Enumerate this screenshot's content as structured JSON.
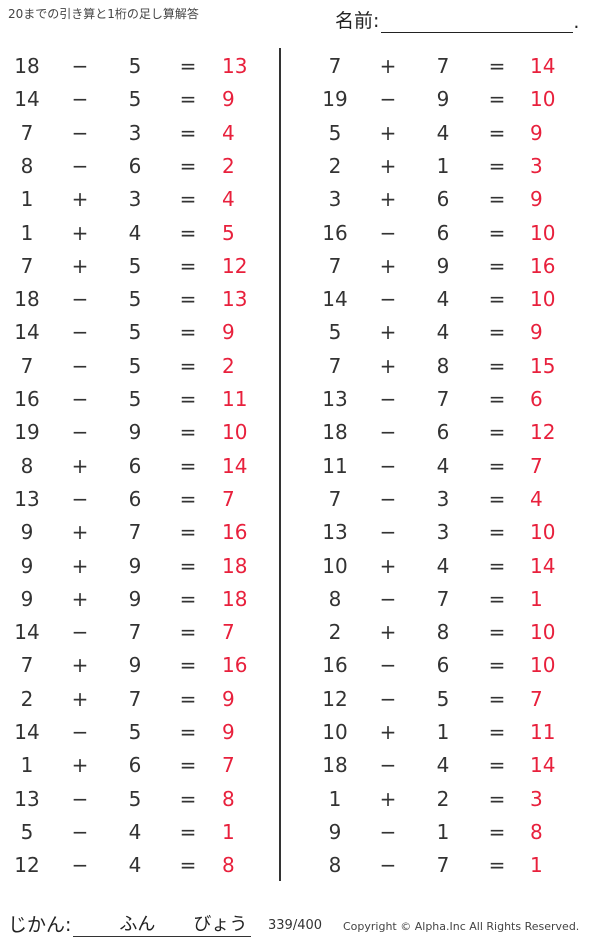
{
  "header": {
    "title": "20までの引き算と1桁の足し算解答",
    "name_label": "名前:",
    "name_end": "."
  },
  "colors": {
    "answer": "#e8203c",
    "text": "#333333"
  },
  "left_problems": [
    [
      "18",
      "−",
      "5",
      "=",
      "13"
    ],
    [
      "14",
      "−",
      "5",
      "=",
      "9"
    ],
    [
      "7",
      "−",
      "3",
      "=",
      "4"
    ],
    [
      "8",
      "−",
      "6",
      "=",
      "2"
    ],
    [
      "1",
      "+",
      "3",
      "=",
      "4"
    ],
    [
      "1",
      "+",
      "4",
      "=",
      "5"
    ],
    [
      "7",
      "+",
      "5",
      "=",
      "12"
    ],
    [
      "18",
      "−",
      "5",
      "=",
      "13"
    ],
    [
      "14",
      "−",
      "5",
      "=",
      "9"
    ],
    [
      "7",
      "−",
      "5",
      "=",
      "2"
    ],
    [
      "16",
      "−",
      "5",
      "=",
      "11"
    ],
    [
      "19",
      "−",
      "9",
      "=",
      "10"
    ],
    [
      "8",
      "+",
      "6",
      "=",
      "14"
    ],
    [
      "13",
      "−",
      "6",
      "=",
      "7"
    ],
    [
      "9",
      "+",
      "7",
      "=",
      "16"
    ],
    [
      "9",
      "+",
      "9",
      "=",
      "18"
    ],
    [
      "9",
      "+",
      "9",
      "=",
      "18"
    ],
    [
      "14",
      "−",
      "7",
      "=",
      "7"
    ],
    [
      "7",
      "+",
      "9",
      "=",
      "16"
    ],
    [
      "2",
      "+",
      "7",
      "=",
      "9"
    ],
    [
      "14",
      "−",
      "5",
      "=",
      "9"
    ],
    [
      "1",
      "+",
      "6",
      "=",
      "7"
    ],
    [
      "13",
      "−",
      "5",
      "=",
      "8"
    ],
    [
      "5",
      "−",
      "4",
      "=",
      "1"
    ],
    [
      "12",
      "−",
      "4",
      "=",
      "8"
    ]
  ],
  "right_problems": [
    [
      "7",
      "+",
      "7",
      "=",
      "14"
    ],
    [
      "19",
      "−",
      "9",
      "=",
      "10"
    ],
    [
      "5",
      "+",
      "4",
      "=",
      "9"
    ],
    [
      "2",
      "+",
      "1",
      "=",
      "3"
    ],
    [
      "3",
      "+",
      "6",
      "=",
      "9"
    ],
    [
      "16",
      "−",
      "6",
      "=",
      "10"
    ],
    [
      "7",
      "+",
      "9",
      "=",
      "16"
    ],
    [
      "14",
      "−",
      "4",
      "=",
      "10"
    ],
    [
      "5",
      "+",
      "4",
      "=",
      "9"
    ],
    [
      "7",
      "+",
      "8",
      "=",
      "15"
    ],
    [
      "13",
      "−",
      "7",
      "=",
      "6"
    ],
    [
      "18",
      "−",
      "6",
      "=",
      "12"
    ],
    [
      "11",
      "−",
      "4",
      "=",
      "7"
    ],
    [
      "7",
      "−",
      "3",
      "=",
      "4"
    ],
    [
      "13",
      "−",
      "3",
      "=",
      "10"
    ],
    [
      "10",
      "+",
      "4",
      "=",
      "14"
    ],
    [
      "8",
      "−",
      "7",
      "=",
      "1"
    ],
    [
      "2",
      "+",
      "8",
      "=",
      "10"
    ],
    [
      "16",
      "−",
      "6",
      "=",
      "10"
    ],
    [
      "12",
      "−",
      "5",
      "=",
      "7"
    ],
    [
      "10",
      "+",
      "1",
      "=",
      "11"
    ],
    [
      "18",
      "−",
      "4",
      "=",
      "14"
    ],
    [
      "1",
      "+",
      "2",
      "=",
      "3"
    ],
    [
      "9",
      "−",
      "1",
      "=",
      "8"
    ],
    [
      "8",
      "−",
      "7",
      "=",
      "1"
    ]
  ],
  "footer": {
    "time_label": "じかん:",
    "minutes": "ふん",
    "seconds": "びょう",
    "page": "339/400",
    "copyright": "Copyright ©  Alpha.Inc All Rights Reserved."
  }
}
